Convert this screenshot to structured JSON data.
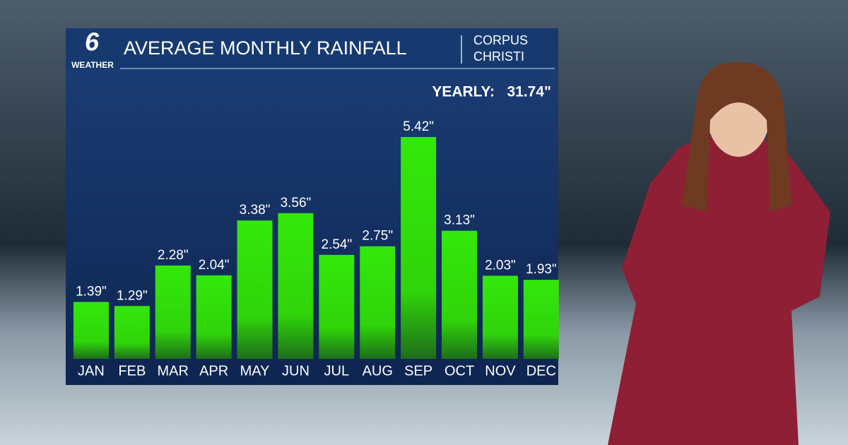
{
  "logo": {
    "channel": "6",
    "label": "WEATHER"
  },
  "chart_data": {
    "type": "bar",
    "title": "AVERAGE MONTHLY RAINFALL",
    "location": [
      "CORPUS",
      "CHRISTI"
    ],
    "annotation": {
      "label": "YEARLY:",
      "value": "31.74\""
    },
    "categories": [
      "JAN",
      "FEB",
      "MAR",
      "APR",
      "MAY",
      "JUN",
      "JUL",
      "AUG",
      "SEP",
      "OCT",
      "NOV",
      "DEC"
    ],
    "values": [
      1.39,
      1.29,
      2.28,
      2.04,
      3.38,
      3.56,
      2.54,
      2.75,
      5.42,
      3.13,
      2.03,
      1.93
    ],
    "value_labels": [
      "1.39\"",
      "1.29\"",
      "2.28\"",
      "2.04\"",
      "3.38\"",
      "3.56\"",
      "2.54\"",
      "2.75\"",
      "5.42\"",
      "3.13\"",
      "2.03\"",
      "1.93\""
    ],
    "color": "#33e80a"
  }
}
